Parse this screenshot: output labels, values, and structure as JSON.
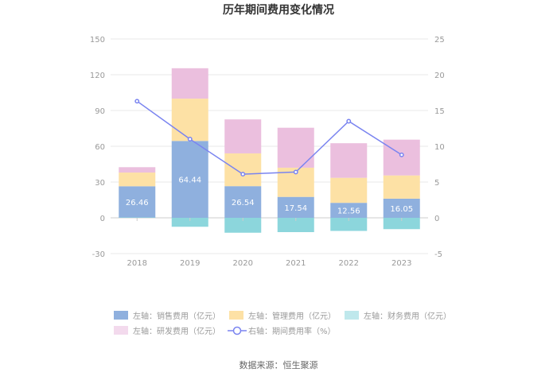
{
  "chart_data": {
    "type": "bar",
    "title": "历年期间费用变化情况",
    "categories": [
      "2018",
      "2019",
      "2020",
      "2021",
      "2022",
      "2023"
    ],
    "left_axis": {
      "min": -30,
      "max": 150,
      "ticks": [
        -30,
        0,
        30,
        60,
        90,
        120,
        150
      ]
    },
    "right_axis": {
      "min": -5,
      "max": 25,
      "ticks": [
        -5,
        0,
        5,
        10,
        15,
        20,
        25
      ]
    },
    "bar_series": [
      {
        "name": "左轴：销售费用（亿元）",
        "color": "#8fb0de",
        "values": [
          26.46,
          64.44,
          26.54,
          17.54,
          12.56,
          16.05
        ]
      },
      {
        "name": "左轴：管理费用（亿元）",
        "color": "#fde1a5",
        "values": [
          11.5,
          35.5,
          27.5,
          24.5,
          21.0,
          19.5
        ]
      },
      {
        "name": "左轴：财务费用（亿元）",
        "color": "#8cd6dc",
        "values": [
          0.3,
          -7.5,
          -12.5,
          -12.0,
          -11.0,
          -9.5
        ]
      },
      {
        "name": "左轴：研发费用（亿元）",
        "color": "#ebbfde",
        "values": [
          4.5,
          25.5,
          28.5,
          33.5,
          29.0,
          30.0
        ]
      }
    ],
    "line_series": {
      "name": "右轴：期间费用率（%）",
      "color": "#7a84f0",
      "values": [
        16.3,
        11.0,
        6.1,
        6.4,
        13.5,
        8.8
      ]
    },
    "value_labels": [
      "26.46",
      "64.44",
      "26.54",
      "17.54",
      "12.56",
      "16.05"
    ]
  },
  "legend": [
    {
      "label": "左轴：销售费用（亿元）",
      "color": "#8fb0de",
      "kind": "rect"
    },
    {
      "label": "左轴：管理费用（亿元）",
      "color": "#fde1a5",
      "kind": "rect"
    },
    {
      "label": "左轴：财务费用（亿元）",
      "color": "#bfe8ec",
      "kind": "rect"
    },
    {
      "label": "左轴：研发费用（亿元）",
      "color": "#f3daed",
      "kind": "rect"
    },
    {
      "label": "右轴：期间费用率（%）",
      "color": "#7a84f0",
      "kind": "line"
    }
  ],
  "source": "数据来源：恒生聚源"
}
